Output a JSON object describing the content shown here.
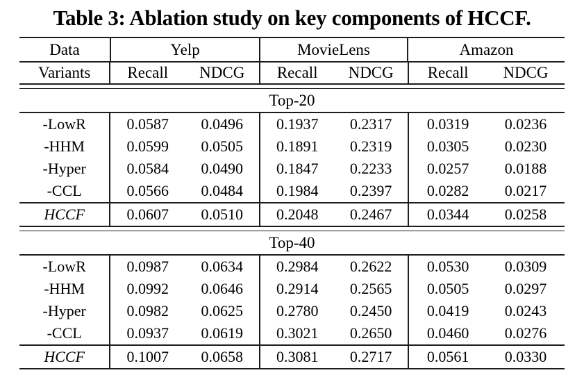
{
  "title": "Table 3: Ablation study on key components of HCCF.",
  "table": {
    "col1_header_line1": "Data",
    "col1_header_line2": "Variants",
    "groups": [
      {
        "label": "Yelp",
        "metrics": [
          "Recall",
          "NDCG"
        ]
      },
      {
        "label": "MovieLens",
        "metrics": [
          "Recall",
          "NDCG"
        ]
      },
      {
        "label": "Amazon",
        "metrics": [
          "Recall",
          "NDCG"
        ]
      }
    ],
    "sections": [
      {
        "label": "Top-20",
        "rows": [
          {
            "variant": "-LowR",
            "italic": false,
            "values": [
              "0.0587",
              "0.0496",
              "0.1937",
              "0.2317",
              "0.0319",
              "0.0236"
            ]
          },
          {
            "variant": "-HHM",
            "italic": false,
            "values": [
              "0.0599",
              "0.0505",
              "0.1891",
              "0.2319",
              "0.0305",
              "0.0230"
            ]
          },
          {
            "variant": "-Hyper",
            "italic": false,
            "values": [
              "0.0584",
              "0.0490",
              "0.1847",
              "0.2233",
              "0.0257",
              "0.0188"
            ]
          },
          {
            "variant": "-CCL",
            "italic": false,
            "values": [
              "0.0566",
              "0.0484",
              "0.1984",
              "0.2397",
              "0.0282",
              "0.0217"
            ]
          }
        ],
        "final_row": {
          "variant": "HCCF",
          "italic": true,
          "values": [
            "0.0607",
            "0.0510",
            "0.2048",
            "0.2467",
            "0.0344",
            "0.0258"
          ]
        }
      },
      {
        "label": "Top-40",
        "rows": [
          {
            "variant": "-LowR",
            "italic": false,
            "values": [
              "0.0987",
              "0.0634",
              "0.2984",
              "0.2622",
              "0.0530",
              "0.0309"
            ]
          },
          {
            "variant": "-HHM",
            "italic": false,
            "values": [
              "0.0992",
              "0.0646",
              "0.2914",
              "0.2565",
              "0.0505",
              "0.0297"
            ]
          },
          {
            "variant": "-Hyper",
            "italic": false,
            "values": [
              "0.0982",
              "0.0625",
              "0.2780",
              "0.2450",
              "0.0419",
              "0.0243"
            ]
          },
          {
            "variant": "-CCL",
            "italic": false,
            "values": [
              "0.0937",
              "0.0619",
              "0.3021",
              "0.2650",
              "0.0460",
              "0.0276"
            ]
          }
        ],
        "final_row": {
          "variant": "HCCF",
          "italic": true,
          "values": [
            "0.1007",
            "0.0658",
            "0.3081",
            "0.2717",
            "0.0561",
            "0.0330"
          ]
        }
      }
    ],
    "colors": {
      "rule": "#1c1c1c",
      "text": "#000000",
      "background": "#ffffff"
    }
  }
}
